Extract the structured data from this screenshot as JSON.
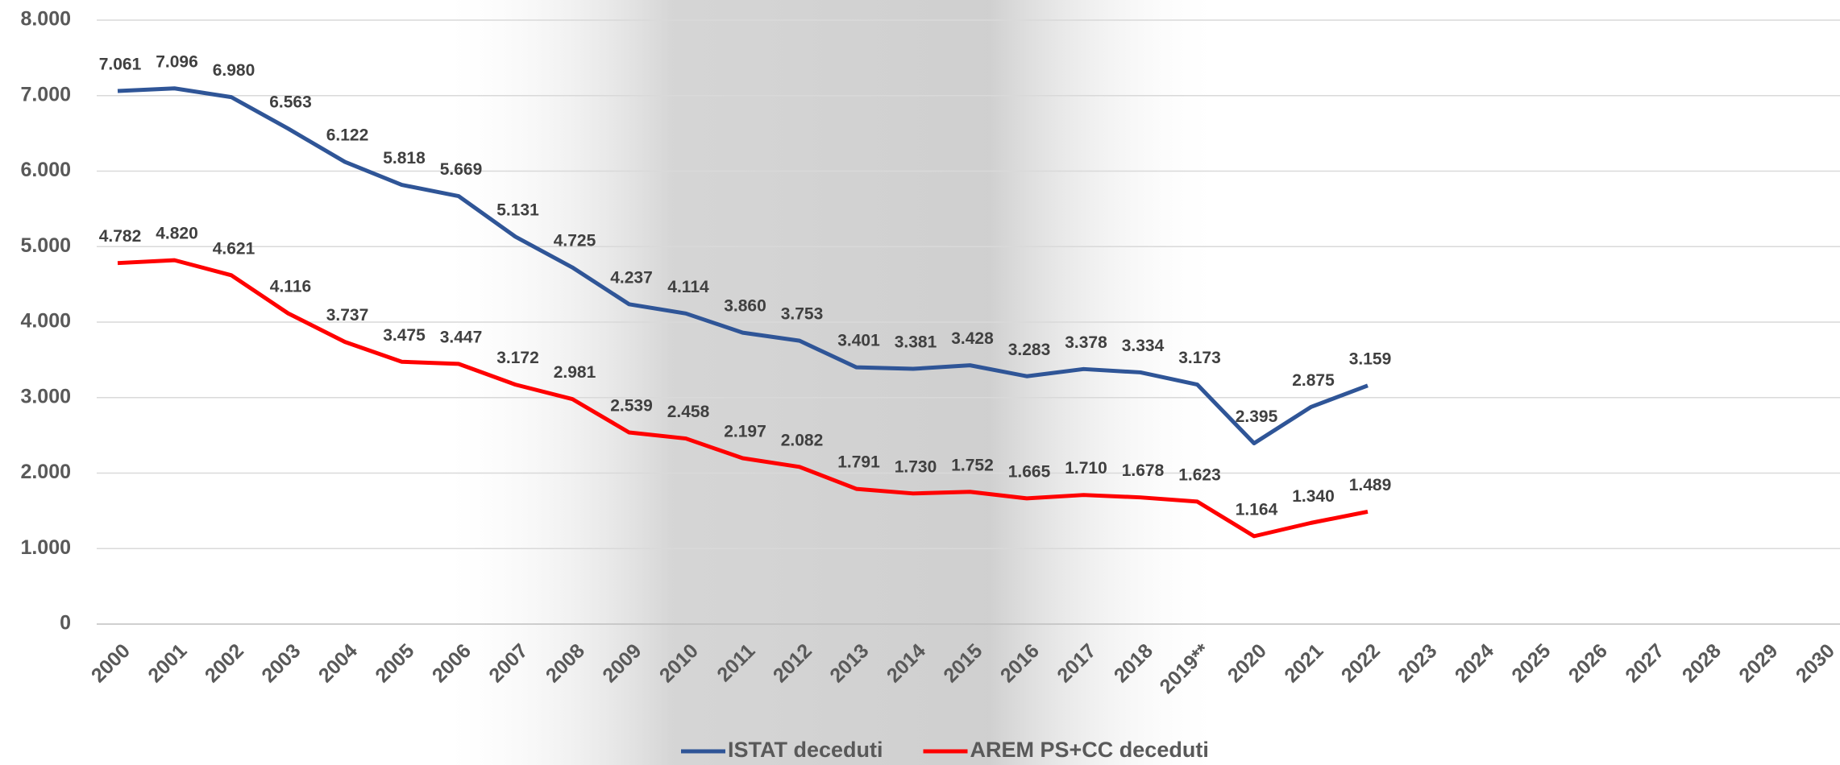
{
  "chart_data": {
    "type": "line",
    "categories": [
      "2000",
      "2001",
      "2002",
      "2003",
      "2004",
      "2005",
      "2006",
      "2007",
      "2008",
      "2009",
      "2010",
      "2011",
      "2012",
      "2013",
      "2014",
      "2015",
      "2016",
      "2017",
      "2018",
      "2019**",
      "2020",
      "2021",
      "2022",
      "2023",
      "2024",
      "2025",
      "2026",
      "2027",
      "2028",
      "2029",
      "2030"
    ],
    "series": [
      {
        "name": "ISTAT deceduti",
        "color": "#2f5597",
        "values": [
          7061,
          7096,
          6980,
          6563,
          6122,
          5818,
          5669,
          5131,
          4725,
          4237,
          4114,
          3860,
          3753,
          3401,
          3381,
          3428,
          3283,
          3378,
          3334,
          3173,
          2395,
          2875,
          3159,
          null,
          null,
          null,
          null,
          null,
          null,
          null,
          null
        ],
        "value_labels": [
          "7.061",
          "7.096",
          "6.980",
          "6.563",
          "6.122",
          "5.818",
          "5.669",
          "5.131",
          "4.725",
          "4.237",
          "4.114",
          "3.860",
          "3.753",
          "3.401",
          "3.381",
          "3.428",
          "3.283",
          "3.378",
          "3.334",
          "3.173",
          "2.395",
          "2.875",
          "3.159",
          null,
          null,
          null,
          null,
          null,
          null,
          null,
          null
        ]
      },
      {
        "name": "AREM PS+CC deceduti",
        "color": "#ff0000",
        "values": [
          4782,
          4820,
          4621,
          4116,
          3737,
          3475,
          3447,
          3172,
          2981,
          2539,
          2458,
          2197,
          2082,
          1791,
          1730,
          1752,
          1665,
          1710,
          1678,
          1623,
          1164,
          1340,
          1489,
          null,
          null,
          null,
          null,
          null,
          null,
          null,
          null
        ],
        "value_labels": [
          "4.782",
          "4.820",
          "4.621",
          "4.116",
          "3.737",
          "3.475",
          "3.447",
          "3.172",
          "2.981",
          "2.539",
          "2.458",
          "2.197",
          "2.082",
          "1.791",
          "1.730",
          "1.752",
          "1.665",
          "1.710",
          "1.678",
          "1.623",
          "1.164",
          "1.340",
          "1.489",
          null,
          null,
          null,
          null,
          null,
          null,
          null,
          null
        ]
      }
    ],
    "ylim": [
      0,
      8000
    ],
    "yticks": [
      0,
      {
        "value": 1000,
        "label": "1.000"
      },
      {
        "value": 2000,
        "label": "2.000"
      },
      {
        "value": 3000,
        "label": "3.000"
      },
      {
        "value": 4000,
        "label": "4.000"
      },
      {
        "value": 5000,
        "label": "5.000"
      },
      {
        "value": 6000,
        "label": "6.000"
      },
      {
        "value": 7000,
        "label": "7.000"
      },
      {
        "value": 8000,
        "label": "8.000"
      }
    ],
    "grid": true,
    "legend": "bottom"
  }
}
